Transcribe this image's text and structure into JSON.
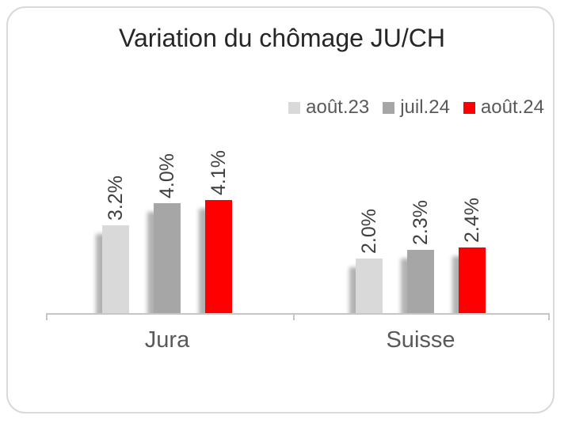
{
  "chart_data": {
    "type": "bar",
    "title": "Variation du chômage JU/CH",
    "categories": [
      "Jura",
      "Suisse"
    ],
    "series": [
      {
        "name": "août.23",
        "color": "#d9d9d9",
        "values": [
          3.2,
          2.0
        ],
        "labels": [
          "3.2%",
          "2.0%"
        ]
      },
      {
        "name": "juil.24",
        "color": "#a6a6a6",
        "values": [
          4.0,
          2.3
        ],
        "labels": [
          "4.0%",
          "2.3%"
        ]
      },
      {
        "name": "août.24",
        "color": "#ff0000",
        "values": [
          4.1,
          2.4
        ],
        "labels": [
          "4.1%",
          "2.4%"
        ]
      }
    ],
    "ylim": [
      0,
      4.5
    ],
    "gridlines": false,
    "legend_position": "top-right",
    "axis_color": "#c6c6c6",
    "colors": {
      "title_text": "#262626",
      "legend_text": "#595959",
      "category_text": "#595959",
      "data_label_text": "#3f3f3f",
      "card_border": "#d9d9d9"
    }
  }
}
